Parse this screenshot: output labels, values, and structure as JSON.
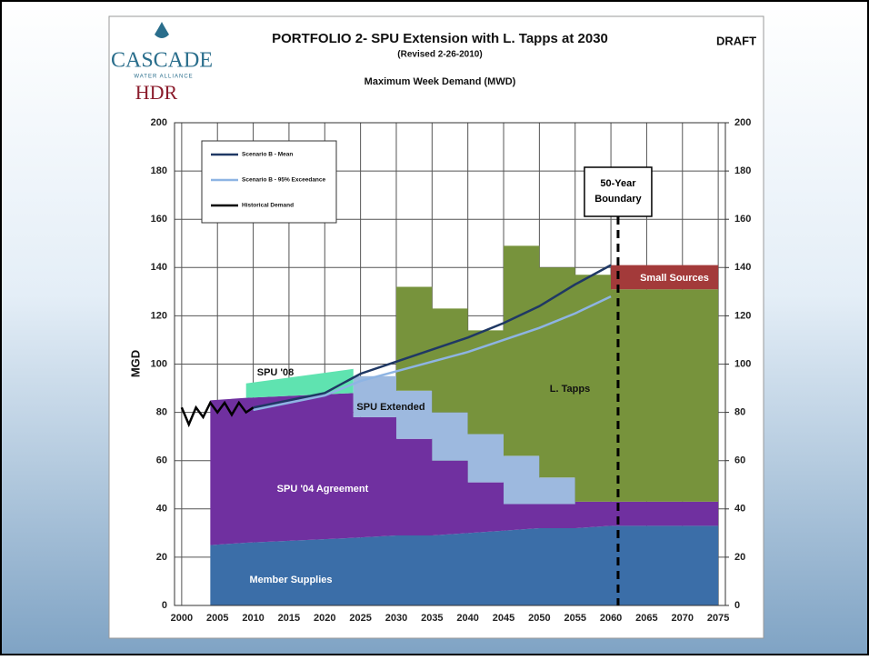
{
  "chart_data": {
    "type": "area",
    "title": "PORTFOLIO 2- SPU Extension with L. Tapps at 2030",
    "subtitle": "(Revised 2-26-2010)",
    "chart_subtitle": "Maximum Week Demand (MWD)",
    "draft": "DRAFT",
    "logos": [
      "CASCADE",
      "WATER ALLIANCE",
      "HDR"
    ],
    "ylabel": "MGD",
    "xlim": [
      1999,
      2076
    ],
    "xticks": [
      2000,
      2005,
      2010,
      2015,
      2020,
      2025,
      2030,
      2035,
      2040,
      2045,
      2050,
      2055,
      2060,
      2065,
      2070,
      2075
    ],
    "ylim": [
      0,
      200
    ],
    "yticks": [
      0,
      20,
      40,
      60,
      80,
      100,
      120,
      140,
      160,
      180,
      200
    ],
    "y2lim": [
      0,
      200
    ],
    "y2ticks": [
      0,
      20,
      40,
      60,
      80,
      100,
      120,
      140,
      160,
      180,
      200
    ],
    "grid": true,
    "x": [
      2004,
      2009,
      2009,
      2024,
      2024,
      2030,
      2030,
      2035,
      2035,
      2040,
      2040,
      2045,
      2045,
      2050,
      2050,
      2055,
      2055,
      2060,
      2060,
      2075
    ],
    "series": [
      {
        "name": "Member Supplies",
        "color": "#3b6ea8",
        "values": [
          25,
          26,
          26,
          28,
          28,
          29,
          29,
          29,
          29,
          30,
          30,
          31,
          31,
          32,
          32,
          32,
          32,
          33,
          33,
          33
        ]
      },
      {
        "name": "SPU '04 Agreement",
        "color": "#7030a0",
        "values": [
          60,
          60,
          60,
          60,
          50,
          49,
          40,
          40,
          31,
          30,
          21,
          20,
          11,
          10,
          10,
          10,
          11,
          10,
          10,
          10
        ]
      },
      {
        "name": "SPU '08",
        "color": "#5fe3b0",
        "values": [
          0,
          0,
          6,
          10,
          0,
          0,
          0,
          0,
          0,
          0,
          0,
          0,
          0,
          0,
          0,
          0,
          0,
          0,
          0,
          0
        ]
      },
      {
        "name": "SPU Extended",
        "color": "#9db9df",
        "values": [
          0,
          0,
          0,
          0,
          17,
          17,
          20,
          20,
          20,
          20,
          20,
          20,
          20,
          20,
          11,
          11,
          0,
          0,
          0,
          0
        ]
      },
      {
        "name": "L. Tapps",
        "color": "#77933c",
        "values": [
          0,
          0,
          0,
          0,
          0,
          0,
          43,
          43,
          43,
          43,
          43,
          43,
          87,
          87,
          87,
          87,
          94,
          94,
          88,
          88
        ]
      },
      {
        "name": "Small Sources",
        "color": "#a33a3a",
        "values": [
          0,
          0,
          0,
          0,
          0,
          0,
          0,
          0,
          0,
          0,
          0,
          0,
          0,
          0,
          0,
          0,
          0,
          0,
          10,
          10
        ]
      }
    ],
    "lines": [
      {
        "name": "Scenario B - Mean",
        "color": "#1f3864",
        "x": [
          2010,
          2015,
          2020,
          2025,
          2030,
          2035,
          2040,
          2045,
          2050,
          2055,
          2060
        ],
        "values": [
          82,
          85,
          88,
          96,
          101,
          106,
          111,
          117,
          124,
          133,
          141
        ]
      },
      {
        "name": "Scenario B - 95% Exceedance",
        "color": "#8eb4e3",
        "x": [
          2010,
          2015,
          2020,
          2025,
          2030,
          2035,
          2040,
          2045,
          2050,
          2055,
          2060
        ],
        "values": [
          81,
          84,
          87,
          93,
          97,
          101,
          105,
          110,
          115,
          121,
          128
        ]
      },
      {
        "name": "Historical Demand",
        "color": "#000000",
        "x": [
          2000,
          2001,
          2002,
          2003,
          2004,
          2005,
          2006,
          2007,
          2008,
          2009,
          2010
        ],
        "values": [
          82,
          75,
          82,
          78,
          84,
          80,
          84,
          79,
          84,
          80,
          82
        ]
      }
    ],
    "annotation": {
      "text": "50-Year Boundary",
      "x": 2061
    }
  }
}
